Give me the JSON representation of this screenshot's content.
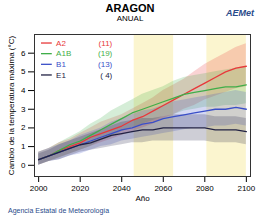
{
  "chart_data": {
    "type": "line",
    "title": "ARAGON",
    "subtitle": "ANUAL",
    "brand": "AEMet",
    "caption": "Agencia Estatal de Meteorología",
    "x_label": "Año",
    "y_label": "Cambio de la temperatura máxima (°C)",
    "x": [
      2000,
      2005,
      2010,
      2015,
      2020,
      2025,
      2030,
      2035,
      2040,
      2045,
      2050,
      2055,
      2060,
      2065,
      2070,
      2075,
      2080,
      2085,
      2090,
      2095,
      2100
    ],
    "xlim": [
      1998,
      2102
    ],
    "xticks": [
      2000,
      2020,
      2040,
      2060,
      2080,
      2100
    ],
    "ylim": [
      -0.6,
      7
    ],
    "yticks": [
      0,
      1,
      2,
      3,
      4,
      5,
      6
    ],
    "periods": [
      [
        2046,
        2065
      ],
      [
        2081,
        2100
      ]
    ],
    "legend": "top-left",
    "series": [
      {
        "name": "A2",
        "count": {
          "value": 11,
          "label": "(11)"
        },
        "color": "#e8383a",
        "values": [
          0.3,
          0.5,
          0.8,
          1.0,
          1.2,
          1.5,
          1.7,
          1.9,
          2.1,
          2.4,
          2.6,
          2.9,
          3.2,
          3.5,
          3.8,
          4.1,
          4.4,
          4.7,
          5.0,
          5.2,
          5.3
        ],
        "low": [
          0.0,
          0.2,
          0.4,
          0.6,
          0.8,
          1.0,
          1.2,
          1.4,
          1.6,
          1.8,
          2.0,
          2.2,
          2.5,
          2.7,
          3.0,
          3.2,
          3.5,
          3.7,
          3.9,
          4.1,
          4.2
        ],
        "high": [
          0.7,
          0.9,
          1.2,
          1.4,
          1.7,
          2.0,
          2.3,
          2.5,
          2.7,
          3.0,
          3.3,
          3.6,
          4.0,
          4.3,
          4.6,
          5.0,
          5.4,
          5.7,
          6.0,
          6.3,
          6.5
        ]
      },
      {
        "name": "A1B",
        "count": {
          "value": 19,
          "label": "(19)"
        },
        "color": "#3fae49",
        "values": [
          0.3,
          0.5,
          0.8,
          1.1,
          1.3,
          1.6,
          1.9,
          2.2,
          2.5,
          2.8,
          3.0,
          3.2,
          3.4,
          3.6,
          3.8,
          3.9,
          4.0,
          4.1,
          4.2,
          4.2,
          4.3
        ],
        "low": [
          0.0,
          0.2,
          0.4,
          0.6,
          0.8,
          1.0,
          1.3,
          1.5,
          1.8,
          2.0,
          2.2,
          2.4,
          2.6,
          2.7,
          2.9,
          3.0,
          3.1,
          3.1,
          3.2,
          3.2,
          3.3
        ],
        "high": [
          0.7,
          0.9,
          1.2,
          1.5,
          1.8,
          2.2,
          2.5,
          2.9,
          3.2,
          3.5,
          3.8,
          4.0,
          4.2,
          4.5,
          4.7,
          4.8,
          4.9,
          5.0,
          5.1,
          5.2,
          5.3
        ]
      },
      {
        "name": "B1",
        "count": {
          "value": 13,
          "label": "(13)"
        },
        "color": "#3a4fc8",
        "values": [
          0.3,
          0.5,
          0.7,
          0.9,
          1.1,
          1.3,
          1.5,
          1.7,
          1.9,
          2.0,
          2.2,
          2.3,
          2.5,
          2.6,
          2.7,
          2.8,
          2.9,
          3.0,
          3.0,
          3.1,
          3.0
        ],
        "low": [
          0.0,
          0.2,
          0.3,
          0.5,
          0.6,
          0.8,
          1.0,
          1.1,
          1.3,
          1.4,
          1.5,
          1.6,
          1.7,
          1.8,
          1.9,
          2.0,
          2.0,
          2.1,
          2.1,
          2.2,
          2.1
        ],
        "high": [
          0.7,
          0.9,
          1.1,
          1.3,
          1.6,
          1.8,
          2.0,
          2.3,
          2.5,
          2.7,
          2.9,
          3.0,
          3.2,
          3.4,
          3.5,
          3.6,
          3.7,
          3.8,
          3.9,
          4.0,
          3.9
        ]
      },
      {
        "name": "E1",
        "count": {
          "value": 4,
          "label": "( 4)"
        },
        "color": "#222244",
        "values": [
          0.3,
          0.5,
          0.7,
          0.9,
          1.1,
          1.2,
          1.4,
          1.6,
          1.7,
          1.8,
          1.9,
          1.9,
          2.0,
          2.0,
          2.0,
          2.0,
          2.0,
          1.9,
          1.9,
          1.9,
          1.8
        ],
        "low": [
          0.0,
          0.2,
          0.3,
          0.5,
          0.7,
          0.8,
          0.9,
          1.0,
          1.1,
          1.2,
          1.2,
          1.3,
          1.3,
          1.3,
          1.3,
          1.3,
          1.3,
          1.2,
          1.2,
          1.2,
          1.1
        ],
        "high": [
          0.6,
          0.8,
          1.1,
          1.3,
          1.5,
          1.7,
          1.9,
          2.1,
          2.3,
          2.4,
          2.5,
          2.5,
          2.6,
          2.7,
          2.7,
          2.7,
          2.7,
          2.6,
          2.6,
          2.6,
          2.5
        ]
      }
    ]
  }
}
